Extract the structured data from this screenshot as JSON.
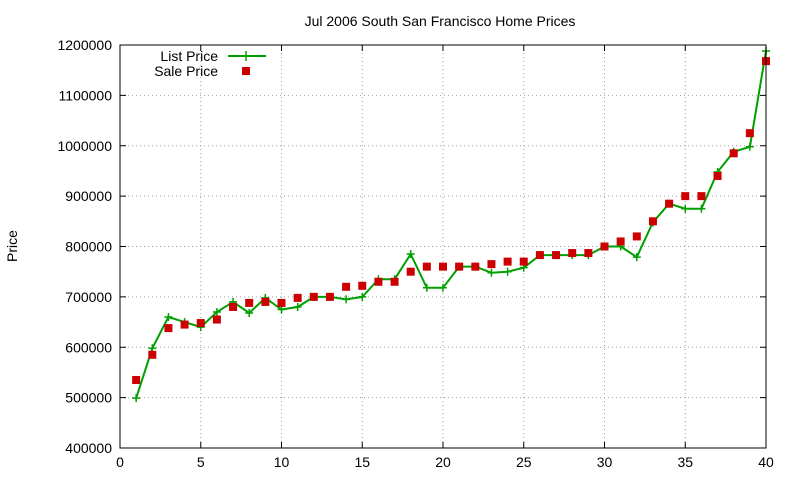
{
  "chart_data": {
    "type": "line",
    "title": "Jul 2006 South San Francisco Home Prices",
    "xlabel": "",
    "ylabel": "Price",
    "xlim": [
      0,
      40
    ],
    "ylim": [
      400000,
      1200000
    ],
    "xticks": [
      "0",
      "5",
      "10",
      "15",
      "20",
      "25",
      "30",
      "35",
      "40"
    ],
    "yticks": [
      "400000",
      "500000",
      "600000",
      "700000",
      "800000",
      "900000",
      "1000000",
      "1100000",
      "1200000"
    ],
    "grid": true,
    "legend_position": "top-left",
    "x": [
      1,
      2,
      3,
      4,
      5,
      6,
      7,
      8,
      9,
      10,
      11,
      12,
      13,
      14,
      15,
      16,
      17,
      18,
      19,
      20,
      21,
      22,
      23,
      24,
      25,
      26,
      27,
      28,
      29,
      30,
      31,
      32,
      33,
      34,
      35,
      36,
      37,
      38,
      39,
      40
    ],
    "series": [
      {
        "name": "List Price",
        "style": "line-with-plus-markers",
        "color": "#00a000",
        "values": [
          499000,
          598000,
          660000,
          650000,
          640000,
          670000,
          690000,
          668000,
          698000,
          675000,
          680000,
          700000,
          700000,
          695000,
          700000,
          735000,
          735000,
          785000,
          718000,
          718000,
          760000,
          760000,
          748000,
          750000,
          758000,
          783000,
          783000,
          783000,
          783000,
          800000,
          800000,
          779000,
          848000,
          885000,
          875000,
          875000,
          948000,
          988000,
          998000,
          1188000
        ]
      },
      {
        "name": "Sale Price",
        "style": "square-markers",
        "color": "#cc0000",
        "values": [
          535000,
          585000,
          638000,
          645000,
          648000,
          655000,
          680000,
          688000,
          690000,
          688000,
          698000,
          700000,
          700000,
          720000,
          722000,
          730000,
          730000,
          750000,
          760000,
          760000,
          760000,
          760000,
          765000,
          770000,
          770000,
          783000,
          783000,
          787000,
          787000,
          800000,
          810000,
          820000,
          850000,
          885000,
          900000,
          900000,
          940000,
          985000,
          1025000,
          1168000
        ]
      }
    ]
  }
}
